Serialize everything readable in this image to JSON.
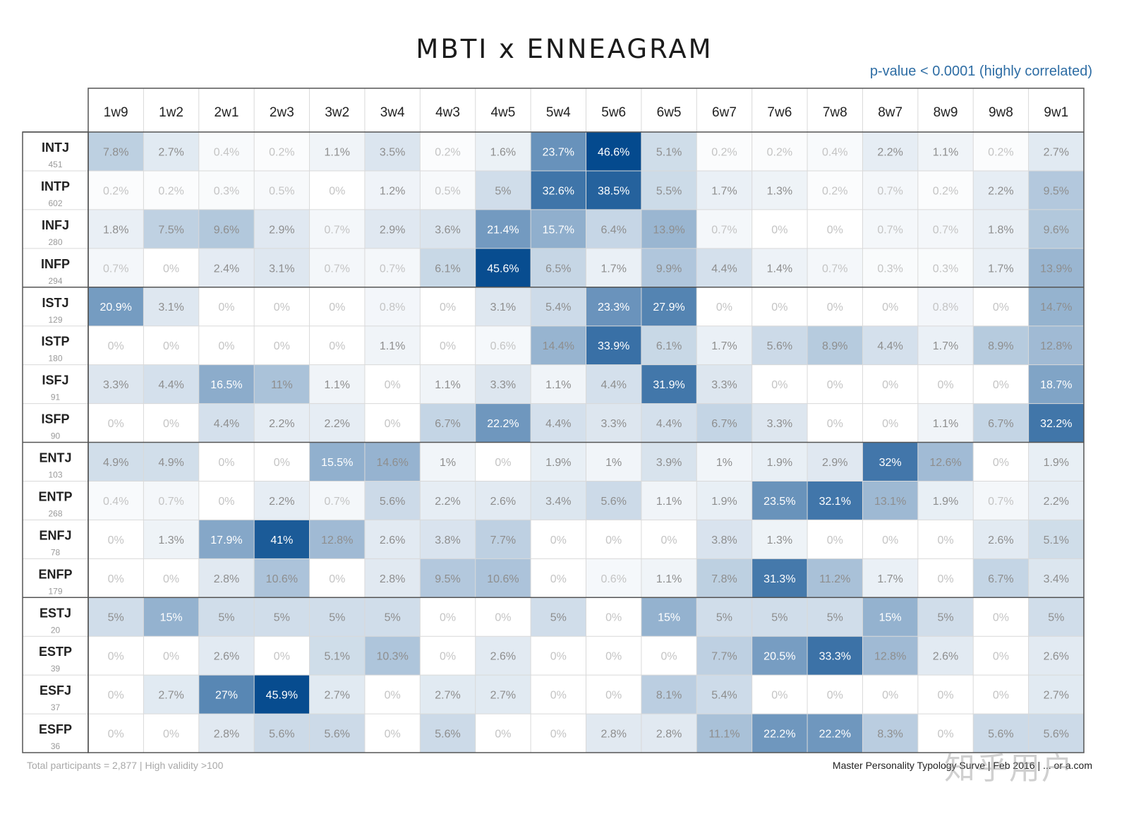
{
  "header": {
    "title": "MBTI x ENNEAGRAM",
    "pvalue": "p-value < 0.0001 (highly correlated)"
  },
  "footer": {
    "left": "Total participants = 2,877 | High validity >100",
    "right": "Master Personality Typology Surve | Feb 2016 | ... or a.com",
    "watermark": "知乎用户"
  },
  "colors": {
    "low": "#ffffff",
    "high": "#044a8e",
    "grid": "#d9d9d9",
    "border": "#555555"
  },
  "chart_data": {
    "type": "heatmap",
    "title": "MBTI x ENNEAGRAM",
    "subtitle": "p-value < 0.0001 (highly correlated)",
    "unit": "%",
    "columns": [
      "1w9",
      "1w2",
      "2w1",
      "2w3",
      "3w2",
      "3w4",
      "4w3",
      "4w5",
      "5w4",
      "5w6",
      "6w5",
      "6w7",
      "7w6",
      "7w8",
      "8w7",
      "8w9",
      "9w8",
      "9w1"
    ],
    "rows": [
      {
        "type": "INTJ",
        "n": "451",
        "values": [
          7.8,
          2.7,
          0.4,
          0.2,
          1.1,
          3.5,
          0.2,
          1.6,
          23.7,
          46.6,
          5.1,
          0.2,
          0.2,
          0.4,
          2.2,
          1.1,
          0.2,
          2.7
        ]
      },
      {
        "type": "INTP",
        "n": "602",
        "values": [
          0.2,
          0.2,
          0.3,
          0.5,
          0,
          1.2,
          0.5,
          5,
          32.6,
          38.5,
          5.5,
          1.7,
          1.3,
          0.2,
          0.7,
          0.2,
          2.2,
          9.5
        ]
      },
      {
        "type": "INFJ",
        "n": "280",
        "values": [
          1.8,
          7.5,
          9.6,
          2.9,
          0.7,
          2.9,
          3.6,
          21.4,
          15.7,
          6.4,
          13.9,
          0.7,
          0,
          0,
          0.7,
          0.7,
          1.8,
          9.6
        ]
      },
      {
        "type": "INFP",
        "n": "294",
        "values": [
          0.7,
          0,
          2.4,
          3.1,
          0.7,
          0.7,
          6.1,
          45.6,
          6.5,
          1.7,
          9.9,
          4.4,
          1.4,
          0.7,
          0.3,
          0.3,
          1.7,
          13.9
        ]
      },
      {
        "type": "ISTJ",
        "n": "129",
        "values": [
          20.9,
          3.1,
          0,
          0,
          0,
          0.8,
          0,
          3.1,
          5.4,
          23.3,
          27.9,
          0,
          0,
          0,
          0,
          0.8,
          0,
          14.7
        ]
      },
      {
        "type": "ISTP",
        "n": "180",
        "values": [
          0,
          0,
          0,
          0,
          0,
          1.1,
          0,
          0.6,
          14.4,
          33.9,
          6.1,
          1.7,
          5.6,
          8.9,
          4.4,
          1.7,
          8.9,
          12.8
        ]
      },
      {
        "type": "ISFJ",
        "n": "91",
        "values": [
          3.3,
          4.4,
          16.5,
          11,
          1.1,
          0,
          1.1,
          3.3,
          1.1,
          4.4,
          31.9,
          3.3,
          0,
          0,
          0,
          0,
          0,
          18.7
        ]
      },
      {
        "type": "ISFP",
        "n": "90",
        "values": [
          0,
          0,
          4.4,
          2.2,
          2.2,
          0,
          6.7,
          22.2,
          4.4,
          3.3,
          4.4,
          6.7,
          3.3,
          0,
          0,
          1.1,
          6.7,
          32.2
        ]
      },
      {
        "type": "ENTJ",
        "n": "103",
        "values": [
          4.9,
          4.9,
          0,
          0,
          15.5,
          14.6,
          1,
          0,
          1.9,
          1,
          3.9,
          1,
          1.9,
          2.9,
          32,
          12.6,
          0,
          1.9
        ]
      },
      {
        "type": "ENTP",
        "n": "268",
        "values": [
          0.4,
          0.7,
          0,
          2.2,
          0.7,
          5.6,
          2.2,
          2.6,
          3.4,
          5.6,
          1.1,
          1.9,
          23.5,
          32.1,
          13.1,
          1.9,
          0.7,
          2.2
        ]
      },
      {
        "type": "ENFJ",
        "n": "78",
        "values": [
          0,
          1.3,
          17.9,
          41,
          12.8,
          2.6,
          3.8,
          7.7,
          0,
          0,
          0,
          3.8,
          1.3,
          0,
          0,
          0,
          2.6,
          5.1
        ]
      },
      {
        "type": "ENFP",
        "n": "179",
        "values": [
          0,
          0,
          2.8,
          10.6,
          0,
          2.8,
          9.5,
          10.6,
          0,
          0.6,
          1.1,
          7.8,
          31.3,
          11.2,
          1.7,
          0,
          6.7,
          3.4
        ]
      },
      {
        "type": "ESTJ",
        "n": "20",
        "values": [
          5,
          15,
          5,
          5,
          5,
          5,
          0,
          0,
          5,
          0,
          15,
          5,
          5,
          5,
          15,
          5,
          0,
          5
        ]
      },
      {
        "type": "ESTP",
        "n": "39",
        "values": [
          0,
          0,
          2.6,
          0,
          5.1,
          10.3,
          0,
          2.6,
          0,
          0,
          0,
          7.7,
          20.5,
          33.3,
          12.8,
          2.6,
          0,
          2.6
        ]
      },
      {
        "type": "ESFJ",
        "n": "37",
        "values": [
          0,
          2.7,
          27,
          45.9,
          2.7,
          0,
          2.7,
          2.7,
          0,
          0,
          8.1,
          5.4,
          0,
          0,
          0,
          0,
          0,
          2.7
        ]
      },
      {
        "type": "ESFP",
        "n": "36",
        "values": [
          0,
          0,
          2.8,
          5.6,
          5.6,
          0,
          5.6,
          0,
          0,
          2.8,
          2.8,
          11.1,
          22.2,
          22.2,
          8.3,
          0,
          5.6,
          5.6
        ]
      }
    ],
    "group_separators_after_rows": [
      3,
      7,
      11
    ],
    "max_value": 46.6
  }
}
